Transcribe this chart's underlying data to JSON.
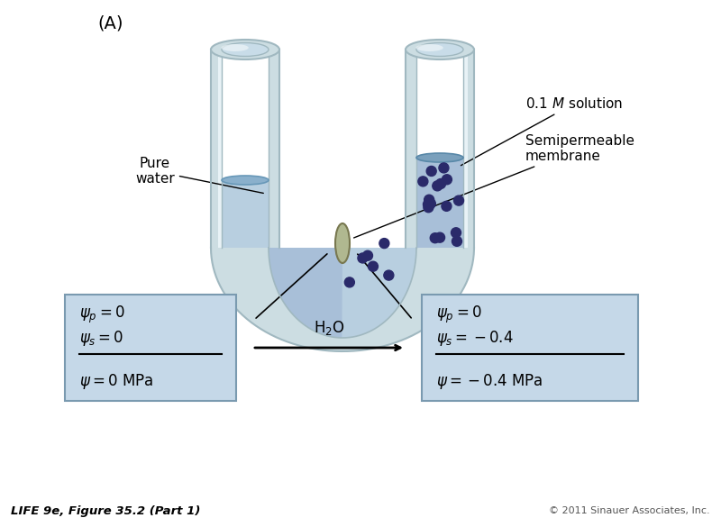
{
  "title_label": "(A)",
  "pure_water_label": "Pure\nwater",
  "solution_label_text": "0.1 ℳ solution",
  "membrane_label": "Semipermeable\nmembrane",
  "h2o_label": "H₂O",
  "left_box": {
    "psi_p": "ψp = 0",
    "psi_s": "ψs = 0",
    "psi": "ψ = 0 MPa"
  },
  "right_box": {
    "psi_p": "ψp = 0",
    "psi_s": "ψs = −0.4",
    "psi": "ψ = −0.4 MPa"
  },
  "caption": "LIFE 9e, Figure 35.2 (Part 1)",
  "copyright": "© 2011 Sinauer Associates, Inc.",
  "bg_color": "#ffffff",
  "glass_color": "#ccdde2",
  "glass_highlight": "#e8f2f6",
  "glass_edge": "#a0b8c0",
  "water_color": "#b8cfe0",
  "water_dark": "#9ab8d0",
  "solution_color": "#a8bfd8",
  "dot_color": "#2a2a6a",
  "membrane_color": "#b0b890",
  "membrane_edge": "#787850",
  "box_fill": "#c5d8e8",
  "box_edge": "#7a9ab0"
}
